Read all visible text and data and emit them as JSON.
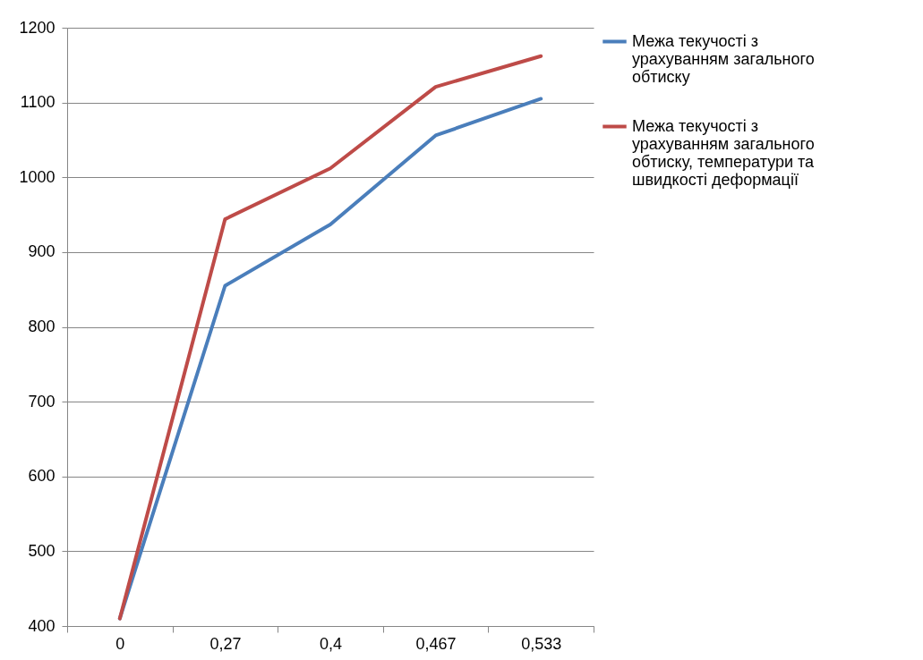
{
  "chart_data": {
    "type": "line",
    "categories": [
      "0",
      "0,27",
      "0,4",
      "0,467",
      "0,533"
    ],
    "series": [
      {
        "name": "Межа текучості з урахуванням загального обтиску",
        "color": "#4a7ebb",
        "values": [
          410,
          855,
          937,
          1056,
          1105
        ]
      },
      {
        "name": "Межа текучості з урахуванням загального обтиску, температури та швидкості деформації",
        "color": "#be4b48",
        "values": [
          410,
          944,
          1012,
          1121,
          1162
        ]
      }
    ],
    "ylim": [
      400,
      1200
    ],
    "yticks": [
      400,
      500,
      600,
      700,
      800,
      900,
      1000,
      1100,
      1200
    ],
    "grid": "y",
    "legend": "right",
    "marker": "none",
    "line_style": "solid"
  }
}
